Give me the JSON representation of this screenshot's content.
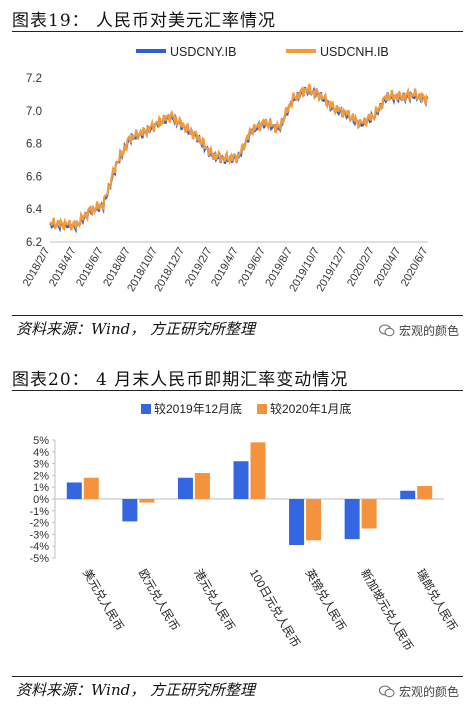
{
  "fig19": {
    "title": "图表19：  人民币对美元汇率情况",
    "source": "资料来源：Wind，  方正研究所整理",
    "watermark": "宏观的颜色",
    "chart_data": {
      "type": "line",
      "series": [
        {
          "name": "USDCNY.IB",
          "color": "#2f5fd6"
        },
        {
          "name": "USDCNH.IB",
          "color": "#f39a3a"
        }
      ],
      "x_labels": [
        "2018/2/7",
        "2018/4/7",
        "2018/6/7",
        "2018/8/7",
        "2018/10/7",
        "2018/12/7",
        "2019/2/7",
        "2019/4/7",
        "2019/6/7",
        "2019/8/7",
        "2019/10/7",
        "2019/12/7",
        "2020/2/7",
        "2020/4/7",
        "2020/6/7"
      ],
      "y_ticks": [
        "6.2",
        "6.4",
        "6.6",
        "6.8",
        "7.0",
        "7.2"
      ],
      "ylim": [
        6.2,
        7.25
      ],
      "anchors_x": [
        "2018/2/7",
        "2018/3/7",
        "2018/4/7",
        "2018/5/7",
        "2018/6/7",
        "2018/6/22",
        "2018/7/7",
        "2018/8/7",
        "2018/9/7",
        "2018/10/7",
        "2018/11/7",
        "2018/12/7",
        "2019/1/7",
        "2019/2/7",
        "2019/3/7",
        "2019/4/7",
        "2019/5/7",
        "2019/6/7",
        "2019/7/7",
        "2019/8/7",
        "2019/9/7",
        "2019/10/7",
        "2019/11/7",
        "2019/12/7",
        "2020/1/7",
        "2020/2/7",
        "2020/3/7",
        "2020/4/7",
        "2020/5/7",
        "2020/6/7"
      ],
      "anchors_y": [
        6.31,
        6.3,
        6.29,
        6.38,
        6.42,
        6.55,
        6.68,
        6.84,
        6.87,
        6.92,
        6.96,
        6.89,
        6.83,
        6.73,
        6.71,
        6.72,
        6.88,
        6.92,
        6.88,
        7.06,
        7.13,
        7.1,
        7.02,
        6.98,
        6.91,
        6.96,
        7.08,
        7.08,
        7.1,
        7.07
      ]
    }
  },
  "fig20": {
    "title": "图表20：  4 月末人民币即期汇率变动情况",
    "source": "资料来源：Wind，  方正研究所整理",
    "watermark": "宏观的颜色",
    "chart_data": {
      "type": "bar",
      "categories": [
        "美元兑人民币",
        "欧元兑人民币",
        "港元兑人民币",
        "100日元兑人民币",
        "英镑兑人民币",
        "新加坡元兑人民币",
        "瑞郎兑人民币"
      ],
      "series": [
        {
          "name": "较2019年12月底",
          "color": "#3366e0",
          "values": [
            1.4,
            -1.9,
            1.8,
            3.2,
            -3.9,
            -3.4,
            0.7
          ]
        },
        {
          "name": "较2020年1月底",
          "color": "#f5923e",
          "values": [
            1.8,
            -0.3,
            2.2,
            4.8,
            -3.5,
            -2.5,
            1.1
          ]
        }
      ],
      "y_ticks": [
        "5%",
        "4%",
        "3%",
        "2%",
        "1%",
        "0%",
        "-1%",
        "-2%",
        "-3%",
        "-4%",
        "-5%"
      ],
      "ylim": [
        -5,
        5
      ]
    }
  }
}
